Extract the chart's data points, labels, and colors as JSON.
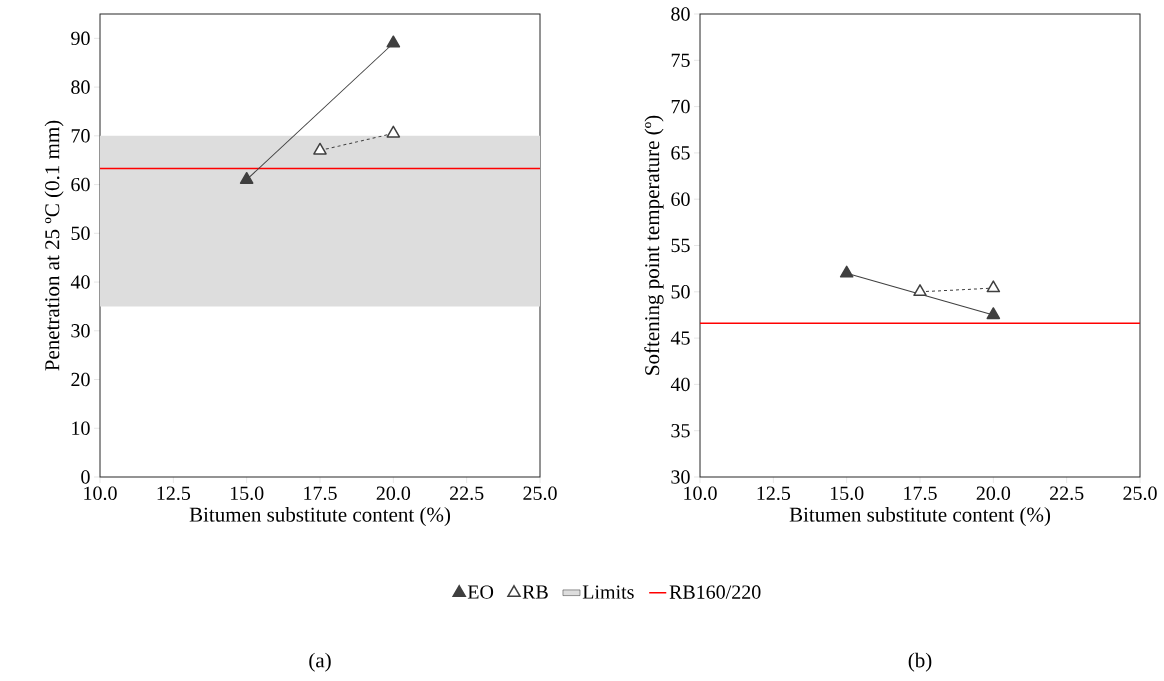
{
  "chart_data": [
    {
      "type": "line",
      "xlabel": "Bitumen substitute content (%)",
      "ylabel": "Penetration at 25 ºC (0.1 mm)",
      "series": [
        {
          "name": "EO",
          "color": "#3f3f3f",
          "x": [
            15,
            20
          ],
          "values": [
            61,
            89
          ],
          "line_style": "solid"
        },
        {
          "name": "RB",
          "color": "#3f3f3f",
          "x": [
            17.5,
            20
          ],
          "values": [
            67,
            70.5
          ],
          "line_style": "dashed"
        }
      ],
      "marker": "triangle",
      "xlim": [
        10,
        25
      ],
      "xticks": [
        {
          "value": 10,
          "label": "10.0"
        },
        {
          "value": 12.5,
          "label": "12.5"
        },
        {
          "value": 15,
          "label": "15.0"
        },
        {
          "value": 17.5,
          "label": "17.5"
        },
        {
          "value": 20,
          "label": "20.0"
        },
        {
          "value": 22.5,
          "label": "22.5"
        },
        {
          "value": 25,
          "label": "25.0"
        }
      ],
      "ylim": [
        0,
        95
      ],
      "yticks": [
        0,
        10,
        20,
        30,
        40,
        50,
        60,
        70,
        80,
        90
      ],
      "bands": [
        {
          "axis": "y",
          "from": 35,
          "to": 70,
          "label": "Limits",
          "color": "#dddddd"
        }
      ],
      "ref_lines": [
        {
          "axis": "y",
          "value": 63.3,
          "label": "RB160/220",
          "color": "#ff0000"
        }
      ],
      "legend": "bottom",
      "grid": false,
      "annotations": [
        "(a)"
      ]
    },
    {
      "type": "line",
      "xlabel": "Bitumen substitute content (%)",
      "ylabel": "Softening point temperature (º)",
      "series": [
        {
          "color": "#3f3f3f",
          "x": [
            15,
            20
          ],
          "values": [
            52,
            47.5
          ],
          "line_style": "solid"
        },
        {
          "color": "#3f3f3f",
          "x": [
            17.5,
            20
          ],
          "values": [
            50,
            50.4
          ],
          "line_style": "dashed"
        }
      ],
      "marker": "triangle",
      "xlim": [
        10,
        25
      ],
      "xticks": [
        {
          "value": 10,
          "label": "10.0"
        },
        {
          "value": 12.5,
          "label": "12.5"
        },
        {
          "value": 15,
          "label": "15.0"
        },
        {
          "value": 17.5,
          "label": "17.5"
        },
        {
          "value": 20,
          "label": "20.0"
        },
        {
          "value": 22.5,
          "label": "22.5"
        },
        {
          "value": 25,
          "label": "25.0"
        }
      ],
      "ylim": [
        30,
        80
      ],
      "yticks": [
        30,
        35,
        40,
        45,
        50,
        55,
        60,
        65,
        70,
        75,
        80
      ],
      "ref_lines": [
        {
          "axis": "y",
          "value": 46.6,
          "color": "#ff0000"
        }
      ],
      "grid": false,
      "annotations": [
        "(b)"
      ]
    }
  ]
}
